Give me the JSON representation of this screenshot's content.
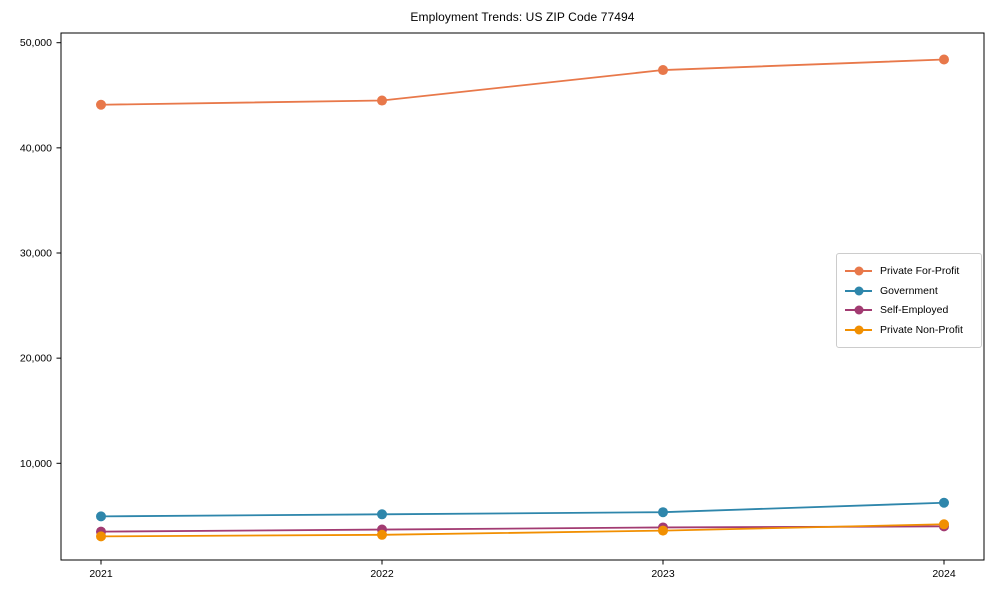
{
  "chart_data": {
    "type": "line",
    "title": "Employment Trends: US ZIP Code 77494",
    "x": [
      2021,
      2022,
      2023,
      2024
    ],
    "series": [
      {
        "name": "Private For-Profit",
        "color": "#e8784a",
        "values": [
          44100,
          44500,
          47400,
          48400
        ]
      },
      {
        "name": "Government",
        "color": "#2e86ab",
        "values": [
          4950,
          5150,
          5350,
          6250
        ]
      },
      {
        "name": "Self-Employed",
        "color": "#a23b72",
        "values": [
          3500,
          3700,
          3900,
          4000
        ]
      },
      {
        "name": "Private Non-Profit",
        "color": "#f18f01",
        "values": [
          3050,
          3200,
          3600,
          4200
        ]
      }
    ],
    "xticks": [
      {
        "value": 2021,
        "label": "2021"
      },
      {
        "value": 2022,
        "label": "2022"
      },
      {
        "value": 2023,
        "label": "2023"
      },
      {
        "value": 2024,
        "label": "2024"
      }
    ],
    "yticks": [
      {
        "value": 10000,
        "label": "10,000"
      },
      {
        "value": 20000,
        "label": "20,000"
      },
      {
        "value": 30000,
        "label": "30,000"
      },
      {
        "value": 40000,
        "label": "40,000"
      },
      {
        "value": 50000,
        "label": "50,000"
      }
    ],
    "xlabel": "",
    "ylabel": "",
    "ylim": [
      800,
      50900
    ],
    "grid": false,
    "legend_position": "center-right",
    "marker": "circle",
    "axis_color": "#000000"
  }
}
